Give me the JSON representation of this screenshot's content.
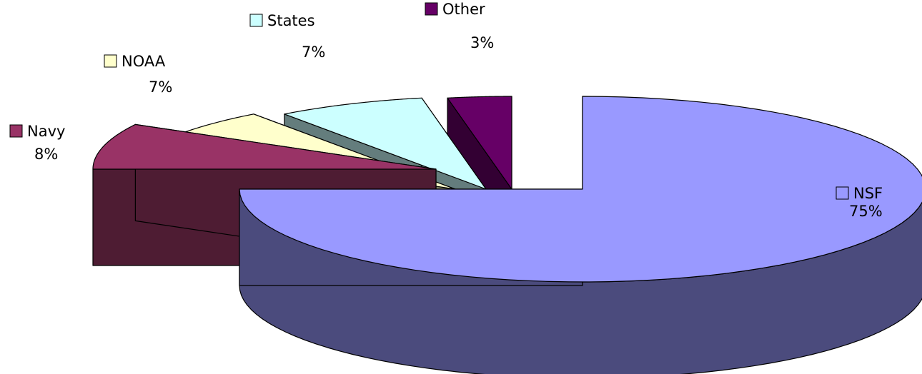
{
  "chart_data": {
    "type": "pie",
    "style": "3d-exploded",
    "slices": [
      {
        "label": "NSF",
        "value": 75,
        "value_label": "75%",
        "color": "#9999ff",
        "side_color": "#4b4b7d"
      },
      {
        "label": "Navy",
        "value": 8,
        "value_label": "8%",
        "color": "#993366",
        "side_color": "#4e1c33"
      },
      {
        "label": "NOAA",
        "value": 7,
        "value_label": "7%",
        "color": "#ffffcc",
        "side_color": "#7d7d63"
      },
      {
        "label": "States",
        "value": 7,
        "value_label": "7%",
        "color": "#ccffff",
        "side_color": "#647d7d"
      },
      {
        "label": "Other",
        "value": 3,
        "value_label": "3%",
        "color": "#660066",
        "side_color": "#330033"
      }
    ]
  }
}
